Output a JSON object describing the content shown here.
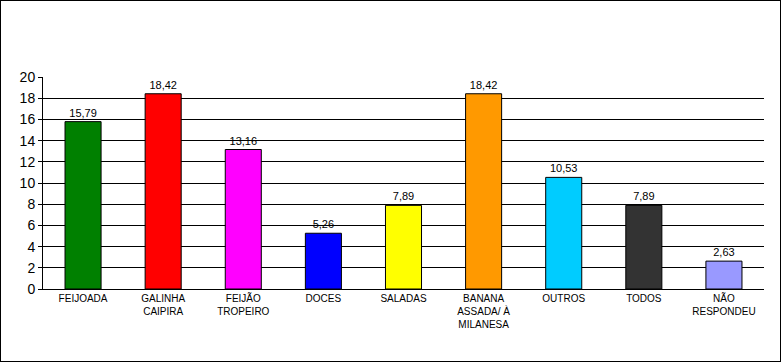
{
  "chart_data": {
    "type": "bar",
    "categories": [
      "FEIJOADA",
      "GALINHA\nCAIPIRA",
      "FEIJÃO\nTROPEIRO",
      "DOCES",
      "SALADAS",
      "BANANA\nASSADA/ À\nMILANESA",
      "OUTROS",
      "TODOS",
      "NÃO\nRESPONDEU"
    ],
    "values": [
      15.79,
      18.42,
      13.16,
      5.26,
      7.89,
      18.42,
      10.53,
      7.89,
      2.63
    ],
    "value_labels": [
      "15,79",
      "18,42",
      "13,16",
      "5,26",
      "7,89",
      "18,42",
      "10,53",
      "7,89",
      "2,63"
    ],
    "colors": [
      "#008000",
      "#ff0000",
      "#ff00ff",
      "#0000ff",
      "#ffff00",
      "#ff9900",
      "#00ccff",
      "#333333",
      "#9999ff"
    ],
    "ylim": [
      0,
      20
    ],
    "yticks": [
      0,
      2,
      4,
      6,
      8,
      10,
      12,
      14,
      16,
      18,
      20
    ],
    "grid": true,
    "data_labels": true
  }
}
